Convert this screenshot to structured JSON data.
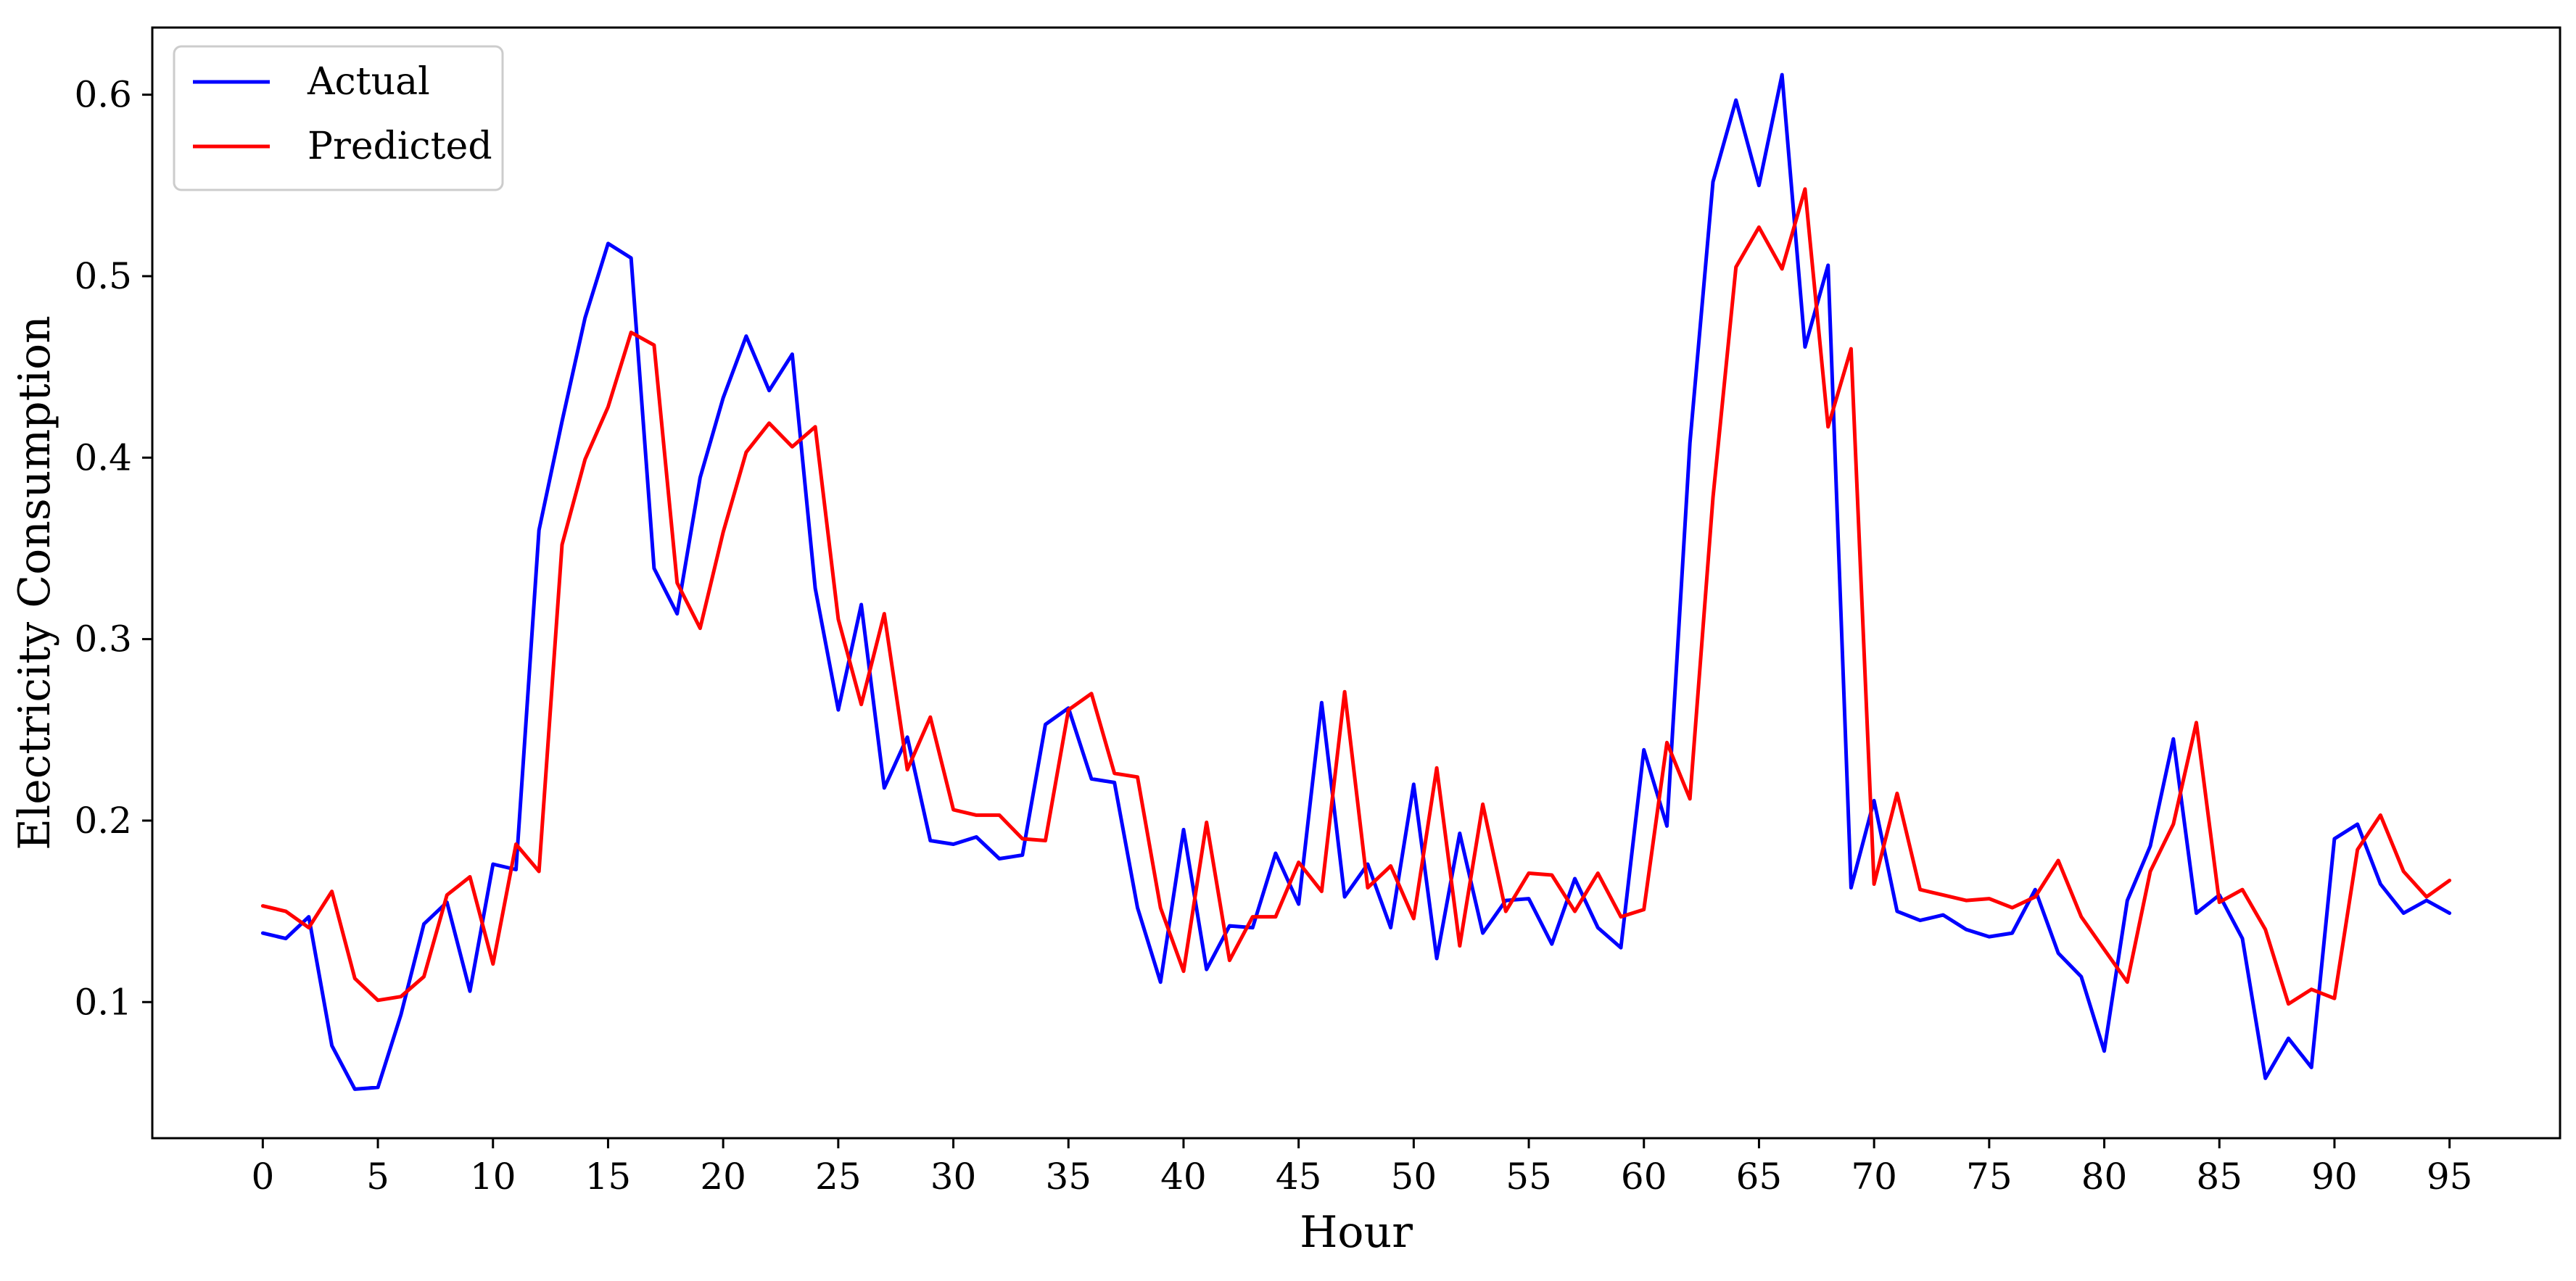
{
  "chart_data": {
    "type": "line",
    "title": "",
    "xlabel": "Hour",
    "ylabel": "Electricity Consumption",
    "xlim": [
      -4.8,
      99.8
    ],
    "ylim": [
      0.025,
      0.637
    ],
    "xticks": [
      0,
      5,
      10,
      15,
      20,
      25,
      30,
      35,
      40,
      45,
      50,
      55,
      60,
      65,
      70,
      75,
      80,
      85,
      90,
      95
    ],
    "yticks": [
      0.1,
      0.2,
      0.3,
      0.4,
      0.5,
      0.6
    ],
    "grid": false,
    "legend": "top-left",
    "series": [
      {
        "name": "Actual",
        "color": "#0000ff",
        "values": [
          0.138,
          0.135,
          0.147,
          0.076,
          0.052,
          0.053,
          0.093,
          0.143,
          0.155,
          0.106,
          0.176,
          0.173,
          0.36,
          0.42,
          0.477,
          0.518,
          0.51,
          0.339,
          0.314,
          0.389,
          0.433,
          0.467,
          0.437,
          0.457,
          0.328,
          0.261,
          0.319,
          0.218,
          0.246,
          0.189,
          0.187,
          0.191,
          0.179,
          0.181,
          0.253,
          0.262,
          0.223,
          0.221,
          0.152,
          0.111,
          0.195,
          0.118,
          0.142,
          0.141,
          0.182,
          0.154,
          0.265,
          0.158,
          0.176,
          0.141,
          0.22,
          0.124,
          0.193,
          0.138,
          0.156,
          0.157,
          0.132,
          0.168,
          0.141,
          0.13,
          0.239,
          0.197,
          0.408,
          0.552,
          0.597,
          0.55,
          0.611,
          0.461,
          0.506,
          0.163,
          0.211,
          0.15,
          0.145,
          0.148,
          0.14,
          0.136,
          0.138,
          0.162,
          0.127,
          0.114,
          0.073,
          0.156,
          0.186,
          0.245,
          0.149,
          0.159,
          0.135,
          0.058,
          0.08,
          0.064,
          0.19,
          0.198,
          0.165,
          0.149,
          0.156,
          0.149
        ]
      },
      {
        "name": "Predicted",
        "color": "#ff0000",
        "values": [
          0.153,
          0.15,
          0.141,
          0.161,
          0.113,
          0.101,
          0.103,
          0.114,
          0.159,
          0.169,
          0.121,
          0.187,
          0.172,
          0.352,
          0.399,
          0.428,
          0.469,
          0.462,
          0.331,
          0.306,
          0.359,
          0.403,
          0.419,
          0.406,
          0.417,
          0.311,
          0.264,
          0.314,
          0.228,
          0.257,
          0.206,
          0.203,
          0.203,
          0.19,
          0.189,
          0.261,
          0.27,
          0.226,
          0.224,
          0.152,
          0.117,
          0.199,
          0.123,
          0.147,
          0.147,
          0.177,
          0.161,
          0.271,
          0.163,
          0.175,
          0.146,
          0.229,
          0.131,
          0.209,
          0.15,
          0.171,
          0.17,
          0.15,
          0.171,
          0.147,
          0.151,
          0.243,
          0.212,
          0.378,
          0.505,
          0.527,
          0.504,
          0.548,
          0.417,
          0.46,
          0.165,
          0.215,
          0.162,
          0.159,
          0.156,
          0.157,
          0.152,
          0.158,
          0.178,
          0.147,
          0.129,
          0.111,
          0.172,
          0.198,
          0.254,
          0.155,
          0.162,
          0.14,
          0.099,
          0.107,
          0.102,
          0.184,
          0.203,
          0.172,
          0.158,
          0.167
        ]
      }
    ]
  }
}
